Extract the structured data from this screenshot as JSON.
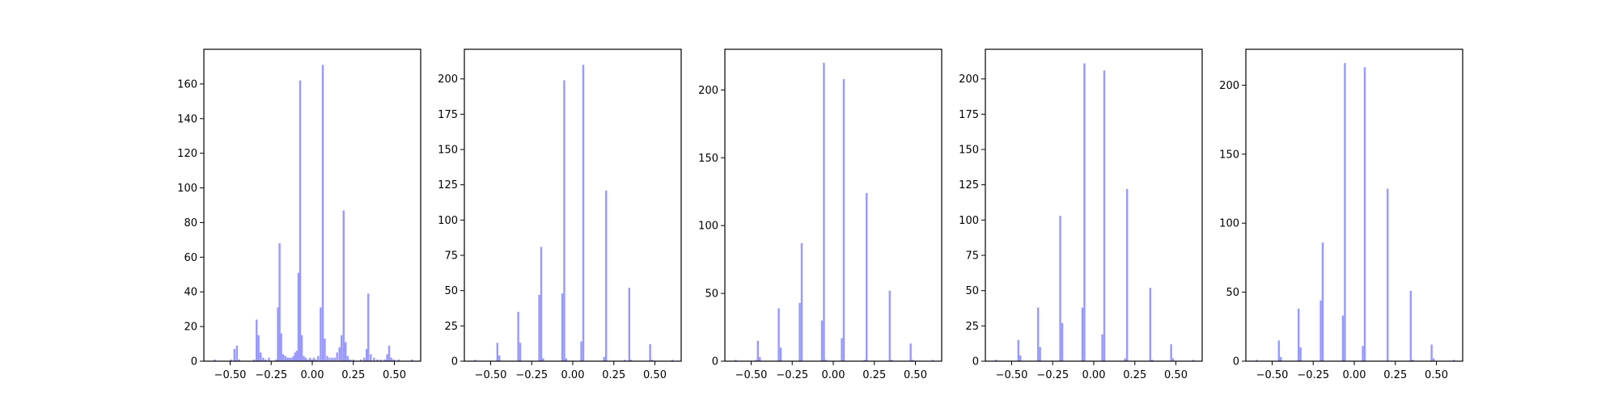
{
  "bar_color": "#9999ff",
  "chart_data": [
    {
      "type": "bar",
      "title": "",
      "xlabel": "",
      "ylabel": "",
      "xlim": [
        -0.66,
        0.66
      ],
      "ylim": [
        0,
        180
      ],
      "xticks": [
        -0.5,
        -0.25,
        0.0,
        0.25,
        0.5
      ],
      "xtick_labels": [
        "−0.50",
        "−0.25",
        "0.00",
        "0.25",
        "0.50"
      ],
      "yticks": [
        0,
        20,
        40,
        60,
        80,
        100,
        120,
        140,
        160
      ],
      "ytick_labels": [
        "0",
        "20",
        "40",
        "60",
        "80",
        "100",
        "120",
        "140",
        "160"
      ],
      "bin_width": 0.012,
      "bins": [
        [
          -0.6,
          1
        ],
        [
          -0.5,
          1
        ],
        [
          -0.48,
          7
        ],
        [
          -0.465,
          9
        ],
        [
          -0.45,
          1
        ],
        [
          -0.36,
          1
        ],
        [
          -0.345,
          24
        ],
        [
          -0.333,
          15
        ],
        [
          -0.32,
          5
        ],
        [
          -0.305,
          2
        ],
        [
          -0.29,
          1
        ],
        [
          -0.27,
          2
        ],
        [
          -0.225,
          1
        ],
        [
          -0.215,
          31
        ],
        [
          -0.205,
          68
        ],
        [
          -0.195,
          16
        ],
        [
          -0.183,
          4
        ],
        [
          -0.17,
          3
        ],
        [
          -0.158,
          2
        ],
        [
          -0.145,
          2
        ],
        [
          -0.132,
          2
        ],
        [
          -0.12,
          3
        ],
        [
          -0.11,
          5
        ],
        [
          -0.1,
          6
        ],
        [
          -0.09,
          51
        ],
        [
          -0.08,
          162
        ],
        [
          -0.07,
          15
        ],
        [
          -0.058,
          3
        ],
        [
          -0.046,
          2
        ],
        [
          -0.034,
          1
        ],
        [
          -0.02,
          2
        ],
        [
          -0.008,
          1
        ],
        [
          0.004,
          2
        ],
        [
          0.016,
          1
        ],
        [
          0.03,
          3
        ],
        [
          0.045,
          31
        ],
        [
          0.058,
          171
        ],
        [
          0.07,
          13
        ],
        [
          0.085,
          3
        ],
        [
          0.1,
          2
        ],
        [
          0.115,
          2
        ],
        [
          0.13,
          2
        ],
        [
          0.145,
          5
        ],
        [
          0.16,
          8
        ],
        [
          0.172,
          15
        ],
        [
          0.185,
          87
        ],
        [
          0.197,
          11
        ],
        [
          0.21,
          3
        ],
        [
          0.225,
          1
        ],
        [
          0.245,
          1
        ],
        [
          0.29,
          1
        ],
        [
          0.31,
          2
        ],
        [
          0.325,
          7
        ],
        [
          0.335,
          39
        ],
        [
          0.35,
          4
        ],
        [
          0.37,
          2
        ],
        [
          0.39,
          1
        ],
        [
          0.41,
          1
        ],
        [
          0.435,
          1
        ],
        [
          0.45,
          4
        ],
        [
          0.462,
          9
        ],
        [
          0.475,
          2
        ],
        [
          0.49,
          1
        ],
        [
          0.52,
          1
        ],
        [
          0.6,
          1
        ]
      ]
    },
    {
      "type": "bar",
      "title": "",
      "xlabel": "",
      "ylabel": "",
      "xlim": [
        -0.66,
        0.66
      ],
      "ylim": [
        0,
        221
      ],
      "xticks": [
        -0.5,
        -0.25,
        0.0,
        0.25,
        0.5
      ],
      "xtick_labels": [
        "−0.50",
        "−0.25",
        "0.00",
        "0.25",
        "0.50"
      ],
      "yticks": [
        0,
        25,
        50,
        75,
        100,
        125,
        150,
        175,
        200
      ],
      "ytick_labels": [
        "0",
        "25",
        "50",
        "75",
        "100",
        "125",
        "150",
        "175",
        "200"
      ],
      "bin_width": 0.012,
      "bins": [
        [
          -0.6,
          1
        ],
        [
          -0.465,
          13
        ],
        [
          -0.453,
          4
        ],
        [
          -0.338,
          35
        ],
        [
          -0.326,
          13
        ],
        [
          -0.21,
          47
        ],
        [
          -0.198,
          81
        ],
        [
          -0.186,
          2
        ],
        [
          -0.07,
          48
        ],
        [
          -0.058,
          199
        ],
        [
          -0.046,
          2
        ],
        [
          0.046,
          14
        ],
        [
          0.058,
          210
        ],
        [
          0.185,
          3
        ],
        [
          0.197,
          121
        ],
        [
          0.31,
          1
        ],
        [
          0.338,
          52
        ],
        [
          0.35,
          1
        ],
        [
          0.465,
          12
        ],
        [
          0.477,
          1
        ],
        [
          0.6,
          1
        ]
      ]
    },
    {
      "type": "bar",
      "title": "",
      "xlabel": "",
      "ylabel": "",
      "xlim": [
        -0.66,
        0.66
      ],
      "ylim": [
        0,
        230
      ],
      "xticks": [
        -0.5,
        -0.25,
        0.0,
        0.25,
        0.5
      ],
      "xtick_labels": [
        "−0.50",
        "−0.25",
        "0.00",
        "0.25",
        "0.50"
      ],
      "yticks": [
        0,
        50,
        100,
        150,
        200
      ],
      "ytick_labels": [
        "0",
        "50",
        "100",
        "150",
        "200"
      ],
      "bin_width": 0.012,
      "bins": [
        [
          -0.6,
          1
        ],
        [
          -0.475,
          1
        ],
        [
          -0.465,
          15
        ],
        [
          -0.453,
          3
        ],
        [
          -0.338,
          39
        ],
        [
          -0.326,
          10
        ],
        [
          -0.21,
          43
        ],
        [
          -0.198,
          87
        ],
        [
          -0.075,
          30
        ],
        [
          -0.063,
          220
        ],
        [
          -0.05,
          1
        ],
        [
          0.046,
          17
        ],
        [
          0.058,
          208
        ],
        [
          0.185,
          1
        ],
        [
          0.197,
          124
        ],
        [
          0.338,
          52
        ],
        [
          0.35,
          1
        ],
        [
          0.465,
          13
        ],
        [
          0.477,
          1
        ],
        [
          0.6,
          1
        ]
      ]
    },
    {
      "type": "bar",
      "title": "",
      "xlabel": "",
      "ylabel": "",
      "xlim": [
        -0.66,
        0.66
      ],
      "ylim": [
        0,
        221
      ],
      "xticks": [
        -0.5,
        -0.25,
        0.0,
        0.25,
        0.5
      ],
      "xtick_labels": [
        "−0.50",
        "−0.25",
        "0.00",
        "0.25",
        "0.50"
      ],
      "yticks": [
        0,
        25,
        50,
        75,
        100,
        125,
        150,
        175,
        200
      ],
      "ytick_labels": [
        "0",
        "25",
        "50",
        "75",
        "100",
        "125",
        "150",
        "175",
        "200"
      ],
      "bin_width": 0.012,
      "bins": [
        [
          -0.6,
          1
        ],
        [
          -0.465,
          15
        ],
        [
          -0.453,
          4
        ],
        [
          -0.345,
          38
        ],
        [
          -0.333,
          10
        ],
        [
          -0.21,
          103
        ],
        [
          -0.198,
          27
        ],
        [
          -0.075,
          38
        ],
        [
          -0.063,
          211
        ],
        [
          0.046,
          19
        ],
        [
          0.058,
          206
        ],
        [
          0.185,
          2
        ],
        [
          0.197,
          122
        ],
        [
          0.338,
          52
        ],
        [
          0.35,
          1
        ],
        [
          0.465,
          12
        ],
        [
          0.477,
          2
        ],
        [
          0.6,
          1
        ]
      ]
    },
    {
      "type": "bar",
      "title": "",
      "xlabel": "",
      "ylabel": "",
      "xlim": [
        -0.66,
        0.66
      ],
      "ylim": [
        0,
        226
      ],
      "xticks": [
        -0.5,
        -0.25,
        0.0,
        0.25,
        0.5
      ],
      "xtick_labels": [
        "−0.50",
        "−0.25",
        "0.00",
        "0.25",
        "0.50"
      ],
      "yticks": [
        0,
        50,
        100,
        150,
        200
      ],
      "ytick_labels": [
        "0",
        "50",
        "100",
        "150",
        "200"
      ],
      "bin_width": 0.012,
      "bins": [
        [
          -0.6,
          1
        ],
        [
          -0.465,
          15
        ],
        [
          -0.453,
          3
        ],
        [
          -0.345,
          38
        ],
        [
          -0.333,
          10
        ],
        [
          -0.21,
          44
        ],
        [
          -0.198,
          86
        ],
        [
          -0.075,
          33
        ],
        [
          -0.063,
          216
        ],
        [
          0.046,
          11
        ],
        [
          0.058,
          213
        ],
        [
          0.197,
          125
        ],
        [
          0.338,
          51
        ],
        [
          0.35,
          1
        ],
        [
          0.465,
          12
        ],
        [
          0.477,
          2
        ],
        [
          0.6,
          1
        ]
      ]
    }
  ]
}
